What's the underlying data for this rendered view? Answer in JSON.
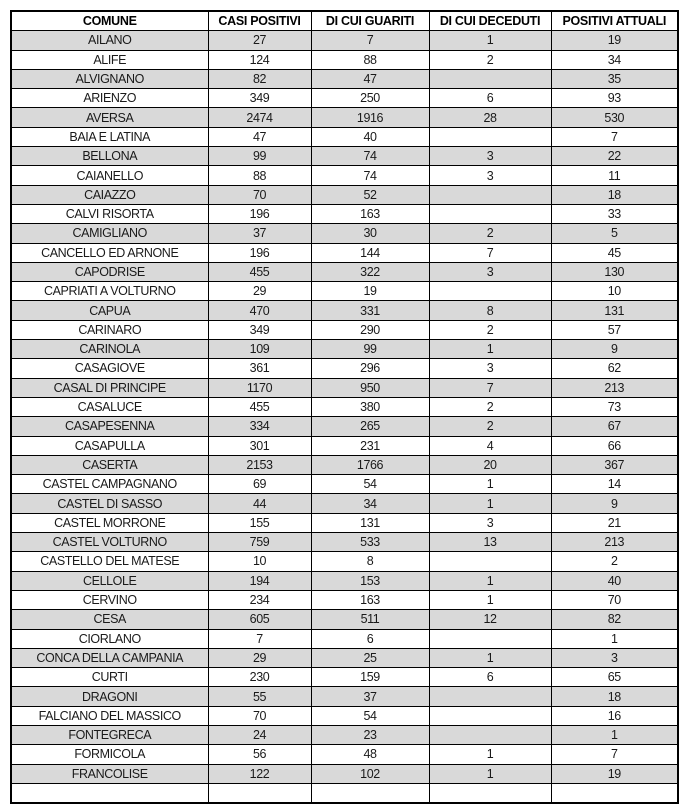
{
  "table": {
    "columns": [
      "COMUNE",
      "CASI POSITIVI",
      "DI CUI GUARITI",
      "DI CUI DECEDUTI",
      "POSITIVI ATTUALI"
    ],
    "rows": [
      [
        "AILANO",
        "27",
        "7",
        "1",
        "19"
      ],
      [
        "ALIFE",
        "124",
        "88",
        "2",
        "34"
      ],
      [
        "ALVIGNANO",
        "82",
        "47",
        "",
        "35"
      ],
      [
        "ARIENZO",
        "349",
        "250",
        "6",
        "93"
      ],
      [
        "AVERSA",
        "2474",
        "1916",
        "28",
        "530"
      ],
      [
        "BAIA E LATINA",
        "47",
        "40",
        "",
        "7"
      ],
      [
        "BELLONA",
        "99",
        "74",
        "3",
        "22"
      ],
      [
        "CAIANELLO",
        "88",
        "74",
        "3",
        "11"
      ],
      [
        "CAIAZZO",
        "70",
        "52",
        "",
        "18"
      ],
      [
        "CALVI RISORTA",
        "196",
        "163",
        "",
        "33"
      ],
      [
        "CAMIGLIANO",
        "37",
        "30",
        "2",
        "5"
      ],
      [
        "CANCELLO ED ARNONE",
        "196",
        "144",
        "7",
        "45"
      ],
      [
        "CAPODRISE",
        "455",
        "322",
        "3",
        "130"
      ],
      [
        "CAPRIATI A VOLTURNO",
        "29",
        "19",
        "",
        "10"
      ],
      [
        "CAPUA",
        "470",
        "331",
        "8",
        "131"
      ],
      [
        "CARINARO",
        "349",
        "290",
        "2",
        "57"
      ],
      [
        "CARINOLA",
        "109",
        "99",
        "1",
        "9"
      ],
      [
        "CASAGIOVE",
        "361",
        "296",
        "3",
        "62"
      ],
      [
        "CASAL DI PRINCIPE",
        "1170",
        "950",
        "7",
        "213"
      ],
      [
        "CASALUCE",
        "455",
        "380",
        "2",
        "73"
      ],
      [
        "CASAPESENNA",
        "334",
        "265",
        "2",
        "67"
      ],
      [
        "CASAPULLA",
        "301",
        "231",
        "4",
        "66"
      ],
      [
        "CASERTA",
        "2153",
        "1766",
        "20",
        "367"
      ],
      [
        "CASTEL CAMPAGNANO",
        "69",
        "54",
        "1",
        "14"
      ],
      [
        "CASTEL DI SASSO",
        "44",
        "34",
        "1",
        "9"
      ],
      [
        "CASTEL MORRONE",
        "155",
        "131",
        "3",
        "21"
      ],
      [
        "CASTEL VOLTURNO",
        "759",
        "533",
        "13",
        "213"
      ],
      [
        "CASTELLO DEL MATESE",
        "10",
        "8",
        "",
        "2"
      ],
      [
        "CELLOLE",
        "194",
        "153",
        "1",
        "40"
      ],
      [
        "CERVINO",
        "234",
        "163",
        "1",
        "70"
      ],
      [
        "CESA",
        "605",
        "511",
        "12",
        "82"
      ],
      [
        "CIORLANO",
        "7",
        "6",
        "",
        "1"
      ],
      [
        "CONCA DELLA CAMPANIA",
        "29",
        "25",
        "1",
        "3"
      ],
      [
        "CURTI",
        "230",
        "159",
        "6",
        "65"
      ],
      [
        "DRAGONI",
        "55",
        "37",
        "",
        "18"
      ],
      [
        "FALCIANO DEL MASSICO",
        "70",
        "54",
        "",
        "16"
      ],
      [
        "FONTEGRECA",
        "24",
        "23",
        "",
        "1"
      ],
      [
        "FORMICOLA",
        "56",
        "48",
        "1",
        "7"
      ],
      [
        "FRANCOLISE",
        "122",
        "102",
        "1",
        "19"
      ]
    ]
  },
  "colors": {
    "row_alt_bg": "#d9d9d9",
    "row_base_bg": "#ffffff",
    "border": "#000000",
    "text": "#1a1a1a"
  }
}
